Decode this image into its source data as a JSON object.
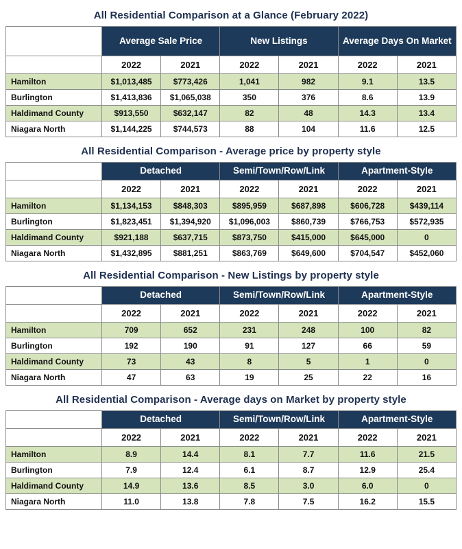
{
  "report": {
    "month": "February 2022"
  },
  "colors": {
    "header_bg": "#1e3a5a",
    "header_text": "#ffffff",
    "row_green": "#d6e4bc",
    "row_white": "#ffffff",
    "border": "#8a8a8a",
    "title_text": "#1f3050"
  },
  "tables": [
    {
      "title": "All Residential Comparison at a Glance (February 2022)",
      "group_headers": [
        "Average Sale Price",
        "New Listings",
        "Average Days On Market"
      ],
      "year_headers": [
        "2022",
        "2021",
        "2022",
        "2021",
        "2022",
        "2021"
      ],
      "rows": [
        {
          "label": "Hamilton",
          "values": [
            "$1,013,485",
            "$773,426",
            "1,041",
            "982",
            "9.1",
            "13.5"
          ]
        },
        {
          "label": "Burlington",
          "values": [
            "$1,413,836",
            "$1,065,038",
            "350",
            "376",
            "8.6",
            "13.9"
          ]
        },
        {
          "label": "Haldimand County",
          "values": [
            "$913,550",
            "$632,147",
            "82",
            "48",
            "14.3",
            "13.4"
          ]
        },
        {
          "label": "Niagara North",
          "values": [
            "$1,144,225",
            "$744,573",
            "88",
            "104",
            "11.6",
            "12.5"
          ]
        }
      ]
    },
    {
      "title": "All Residential Comparison - Average price by property style",
      "group_headers": [
        "Detached",
        "Semi/Town/Row/Link",
        "Apartment-Style"
      ],
      "year_headers": [
        "2022",
        "2021",
        "2022",
        "2021",
        "2022",
        "2021"
      ],
      "rows": [
        {
          "label": "Hamilton",
          "values": [
            "$1,134,153",
            "$848,303",
            "$895,959",
            "$687,898",
            "$606,728",
            "$439,114"
          ]
        },
        {
          "label": "Burlington",
          "values": [
            "$1,823,451",
            "$1,394,920",
            "$1,096,003",
            "$860,739",
            "$766,753",
            "$572,935"
          ]
        },
        {
          "label": "Haldimand County",
          "values": [
            "$921,188",
            "$637,715",
            "$873,750",
            "$415,000",
            "$645,000",
            "0"
          ]
        },
        {
          "label": "Niagara North",
          "values": [
            "$1,432,895",
            "$881,251",
            "$863,769",
            "$649,600",
            "$704,547",
            "$452,060"
          ]
        }
      ]
    },
    {
      "title": "All Residential Comparison - New Listings by property style",
      "group_headers": [
        "Detached",
        "Semi/Town/Row/Link",
        "Apartment-Style"
      ],
      "year_headers": [
        "2022",
        "2021",
        "2022",
        "2021",
        "2022",
        "2021"
      ],
      "rows": [
        {
          "label": "Hamilton",
          "values": [
            "709",
            "652",
            "231",
            "248",
            "100",
            "82"
          ]
        },
        {
          "label": "Burlington",
          "values": [
            "192",
            "190",
            "91",
            "127",
            "66",
            "59"
          ]
        },
        {
          "label": "Haldimand County",
          "values": [
            "73",
            "43",
            "8",
            "5",
            "1",
            "0"
          ]
        },
        {
          "label": "Niagara North",
          "values": [
            "47",
            "63",
            "19",
            "25",
            "22",
            "16"
          ]
        }
      ]
    },
    {
      "title": "All Residential Comparison - Average days on Market by property style",
      "group_headers": [
        "Detached",
        "Semi/Town/Row/Link",
        "Apartment-Style"
      ],
      "year_headers": [
        "2022",
        "2021",
        "2022",
        "2021",
        "2022",
        "2021"
      ],
      "rows": [
        {
          "label": "Hamilton",
          "values": [
            "8.9",
            "14.4",
            "8.1",
            "7.7",
            "11.6",
            "21.5"
          ]
        },
        {
          "label": "Burlington",
          "values": [
            "7.9",
            "12.4",
            "6.1",
            "8.7",
            "12.9",
            "25.4"
          ]
        },
        {
          "label": "Haldimand County",
          "values": [
            "14.9",
            "13.6",
            "8.5",
            "3.0",
            "6.0",
            "0"
          ]
        },
        {
          "label": "Niagara North",
          "values": [
            "11.0",
            "13.8",
            "7.8",
            "7.5",
            "16.2",
            "15.5"
          ]
        }
      ]
    }
  ]
}
